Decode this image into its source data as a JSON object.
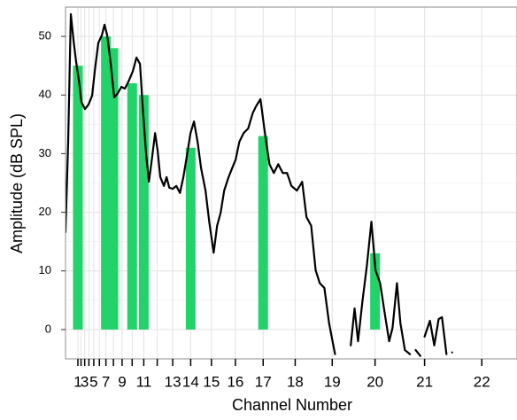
{
  "chart_data": {
    "type": "combo",
    "xlabel": "Channel Number",
    "ylabel": "Amplitude (dB SPL)",
    "xscale": "exp",
    "xlim": [
      -5.55,
      22.55
    ],
    "ylim": [
      -5,
      55
    ],
    "xticks": [
      1,
      3,
      5,
      7,
      9,
      11,
      13,
      14,
      15,
      16,
      17,
      18,
      19,
      20,
      21,
      22
    ],
    "minor_xticks": [
      2,
      4,
      6,
      8,
      10,
      12
    ],
    "yticks": [
      0,
      10,
      20,
      30,
      40,
      50
    ],
    "minor_yticks": [
      5,
      15,
      25,
      35,
      45
    ],
    "grid": true,
    "series": [
      {
        "type": "bar",
        "color": "#22d36a",
        "x": [
          1,
          7,
          8,
          10,
          11,
          14,
          17,
          20
        ],
        "values": [
          45,
          50,
          48,
          42,
          40,
          31,
          33,
          13
        ]
      },
      {
        "type": "line",
        "color": "#000000",
        "x": [
          -5.55,
          -3.53,
          -1.97,
          -0.7,
          0.38,
          1.3,
          2.12,
          3.08,
          3.93,
          4.68,
          5.19,
          5.82,
          6.4,
          6.8,
          7.18,
          7.66,
          8.1,
          8.52,
          8.92,
          9.29,
          9.65,
          10.07,
          10.39,
          10.69,
          10.91,
          11.19,
          11.4,
          11.66,
          11.85,
          12.03,
          12.21,
          12.45,
          12.62,
          12.79,
          13,
          13.21,
          13.42,
          13.61,
          13.81,
          13.99,
          14.17,
          14.35,
          14.52,
          14.73,
          14.9,
          15.1,
          15.25,
          15.4,
          15.55,
          15.73,
          15.87,
          16.01,
          16.15,
          16.31,
          16.48,
          16.64,
          16.76,
          16.91,
          17.06,
          17.21,
          17.35,
          17.49,
          17.63,
          17.76,
          17.89,
          18.05,
          18.2,
          18.32,
          18.45,
          18.57,
          18.68,
          18.8,
          18.92,
          19.07,
          19.26,
          19.45,
          19.54,
          19.62,
          19.72,
          19.82,
          19.92,
          20.01,
          20.11,
          20.21,
          20.3,
          20.37,
          20.46,
          20.53,
          20.62,
          20.72,
          20.78,
          20.83,
          20.92,
          20.96,
          21.0,
          21.1,
          21.18,
          21.26,
          21.32,
          21.4,
          21.45,
          21.5
        ],
        "values": [
          16.6,
          32,
          53.8,
          49.4,
          45.6,
          42.6,
          38.8,
          37.6,
          38.4,
          39.9,
          44.1,
          48.9,
          50.2,
          52.0,
          50.2,
          45.3,
          39.6,
          40.3,
          41.4,
          41.1,
          42.3,
          44.1,
          46.4,
          45.3,
          38.1,
          29.8,
          25.2,
          29.8,
          33.5,
          30.5,
          26.0,
          24.5,
          26.0,
          24.2,
          24.0,
          24.5,
          23.3,
          26.0,
          29.8,
          33.5,
          35.5,
          32.0,
          27.5,
          23.7,
          18.4,
          13.1,
          17.7,
          19.9,
          23.7,
          26.0,
          27.5,
          29.0,
          32.0,
          33.5,
          34.3,
          36.9,
          38.1,
          39.3,
          33.5,
          28.2,
          26.7,
          28.2,
          26.7,
          26.7,
          24.5,
          23.7,
          25.2,
          19.2,
          17.7,
          10.1,
          7.9,
          7.1,
          1.1,
          -4.2,
          null,
          -2.7,
          3.6,
          -2.0,
          4.8,
          10.9,
          18.4,
          10.1,
          7.9,
          2.6,
          -2.0,
          0.3,
          7.9,
          1.1,
          -3.5,
          -4.2,
          null,
          -3.5,
          -4.5,
          null,
          -1.2,
          1.5,
          -2.7,
          1.8,
          2.1,
          -4.2,
          null,
          -3.9
        ]
      }
    ]
  }
}
